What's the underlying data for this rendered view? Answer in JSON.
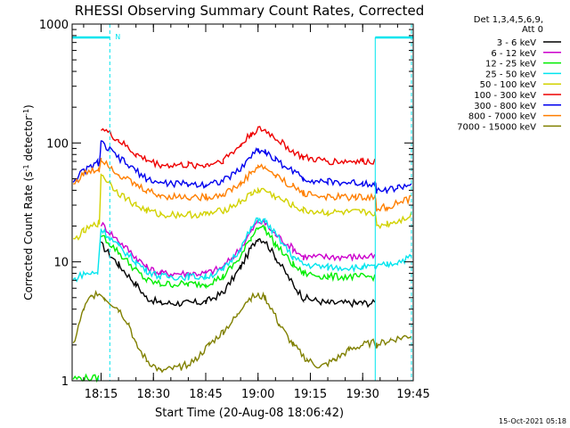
{
  "chart_data": {
    "type": "line",
    "title": "RHESSI Observing Summary Count Rates, Corrected",
    "xlabel": "Start Time (20-Aug-08 18:06:42)",
    "ylabel_parts": [
      "Corrected Count Rate (s",
      "-1",
      " detector",
      "-1",
      ")"
    ],
    "y_scale": "log",
    "ylim": [
      1,
      1000
    ],
    "y_ticks": [
      {
        "value": 1,
        "label": "1"
      },
      {
        "value": 10,
        "label": "10"
      },
      {
        "value": 100,
        "label": "100"
      },
      {
        "value": 1000,
        "label": "1000"
      }
    ],
    "x_range_minutes": [
      6.7,
      104.5
    ],
    "x_ticks": [
      {
        "minute": 15,
        "label": "18:15"
      },
      {
        "minute": 30,
        "label": "18:30"
      },
      {
        "minute": 45,
        "label": "18:45"
      },
      {
        "minute": 60,
        "label": "19:00"
      },
      {
        "minute": 75,
        "label": "19:15"
      },
      {
        "minute": 90,
        "label": "19:30"
      },
      {
        "minute": 105,
        "label": "19:45"
      }
    ],
    "legend_title": [
      "Det 1,3,4,5,6,9,",
      "Att 0"
    ],
    "legend_placement": "right, outside",
    "series": [
      {
        "name": "3 - 6 keV",
        "color": "#000000",
        "x": [
          7,
          10,
          13,
          14.5,
          15,
          20,
          25,
          28,
          32,
          40,
          45,
          50,
          55,
          58,
          60,
          62,
          65,
          70,
          73,
          80,
          88,
          90,
          93.5
        ],
        "y": [
          null,
          null,
          null,
          null,
          14,
          9.5,
          6.5,
          5,
          4.5,
          4.5,
          4.6,
          5.5,
          9,
          13,
          16,
          15,
          11,
          6.5,
          5,
          4.5,
          4.5,
          4.5,
          4.5
        ]
      },
      {
        "name": "6 - 12 keV",
        "color": "#cc00cc",
        "x": [
          15,
          20,
          25,
          28,
          32,
          40,
          45,
          50,
          55,
          58,
          60,
          62,
          65,
          70,
          73,
          80,
          88,
          90,
          93.5
        ],
        "y": [
          21,
          15,
          11,
          9,
          8,
          8,
          8,
          9,
          13,
          18,
          22,
          21,
          17,
          13,
          11,
          11,
          11,
          11,
          11
        ]
      },
      {
        "name": "12 - 25 keV",
        "color": "#00ee00",
        "x": [
          7,
          14.3,
          14.4,
          15,
          20,
          25,
          28,
          32,
          40,
          45,
          50,
          55,
          58,
          60,
          62,
          65,
          70,
          73,
          80,
          88,
          90,
          93.5,
          93.6,
          98,
          104
        ],
        "y": [
          1.05,
          1.05,
          null,
          17,
          12,
          8.5,
          7,
          6.5,
          6.5,
          6.5,
          7.5,
          11,
          16,
          20,
          19,
          14,
          9.5,
          8,
          7.5,
          7.5,
          7.5,
          7.5,
          null,
          null,
          null
        ]
      },
      {
        "name": "25 - 50 keV",
        "color": "#00e5ee",
        "x": [
          7,
          10,
          14,
          15,
          20,
          25,
          28,
          32,
          40,
          45,
          50,
          55,
          58,
          60,
          62,
          65,
          70,
          73,
          80,
          88,
          90,
          93.5,
          94,
          97,
          100,
          104
        ],
        "y": [
          7,
          8,
          8,
          19,
          13.5,
          10,
          8.5,
          7.5,
          7.5,
          7.5,
          8.5,
          13,
          19,
          23,
          22,
          17,
          11,
          9.5,
          9,
          9,
          9,
          9,
          9,
          9.5,
          10,
          11
        ]
      },
      {
        "name": "50 - 100 keV",
        "color": "#d2d200",
        "x": [
          7,
          10,
          14,
          14.5,
          15,
          20,
          25,
          28,
          32,
          40,
          45,
          50,
          55,
          58,
          60,
          62,
          65,
          70,
          73,
          80,
          88,
          90,
          93.5,
          94,
          97,
          100,
          104
        ],
        "y": [
          15,
          18,
          21,
          21,
          55,
          38,
          30,
          27,
          25,
          25,
          25,
          27,
          32,
          37,
          40,
          40,
          35,
          30,
          27,
          26,
          26,
          26,
          26,
          20,
          21,
          22,
          25
        ]
      },
      {
        "name": "100 - 300 keV",
        "color": "#ee0000",
        "x": [
          14.5,
          15,
          20,
          25,
          28,
          32,
          40,
          45,
          50,
          55,
          58,
          60,
          62,
          65,
          70,
          73,
          80,
          88,
          90,
          93.5,
          94,
          97,
          100,
          104
        ],
        "y": [
          null,
          135,
          105,
          80,
          72,
          65,
          65,
          65,
          72,
          95,
          120,
          130,
          128,
          110,
          85,
          75,
          70,
          70,
          70,
          70,
          null,
          null,
          null,
          null
        ]
      },
      {
        "name": "300 - 800 keV",
        "color": "#0000ee",
        "x": [
          7,
          10,
          14,
          14.5,
          15,
          20,
          25,
          28,
          32,
          40,
          45,
          50,
          55,
          58,
          60,
          62,
          65,
          70,
          73,
          80,
          88,
          90,
          93.5,
          94,
          97,
          100,
          104
        ],
        "y": [
          48,
          58,
          68,
          68,
          100,
          75,
          58,
          50,
          46,
          45,
          45,
          48,
          60,
          78,
          88,
          85,
          72,
          58,
          50,
          47,
          46,
          46,
          46,
          40,
          40,
          42,
          45
        ]
      },
      {
        "name": "800 - 7000 keV",
        "color": "#ff7f00",
        "x": [
          7,
          10,
          14,
          14.5,
          15,
          20,
          25,
          28,
          32,
          40,
          45,
          50,
          55,
          58,
          60,
          62,
          65,
          70,
          73,
          80,
          88,
          90,
          93.5,
          94,
          97,
          100,
          104
        ],
        "y": [
          45,
          55,
          60,
          60,
          75,
          55,
          44,
          40,
          36,
          35,
          35,
          37,
          45,
          56,
          63,
          62,
          53,
          43,
          38,
          35,
          35,
          35,
          35,
          28,
          29,
          31,
          34
        ]
      },
      {
        "name": "7000 - 15000 keV",
        "color": "#808000",
        "x": [
          7,
          10,
          12,
          14,
          16,
          20,
          23,
          25,
          28,
          32,
          38,
          42,
          46,
          50,
          54,
          56,
          58,
          60,
          62,
          64,
          66,
          70,
          74,
          78,
          82,
          86,
          90,
          93.5,
          94,
          98,
          104
        ],
        "y": [
          2,
          4,
          5,
          5.5,
          5,
          4,
          3,
          2,
          1.5,
          1.2,
          1.3,
          1.5,
          2,
          2.6,
          3.5,
          4.5,
          5,
          5.2,
          5,
          4,
          3,
          2,
          1.5,
          1.3,
          1.5,
          1.8,
          2,
          2.1,
          2,
          2.2,
          2.4
        ]
      }
    ],
    "flag_lines": [
      {
        "label": "N",
        "color": "#00e5ee"
      }
    ],
    "timestamp": "15-Oct-2021 05:18"
  }
}
